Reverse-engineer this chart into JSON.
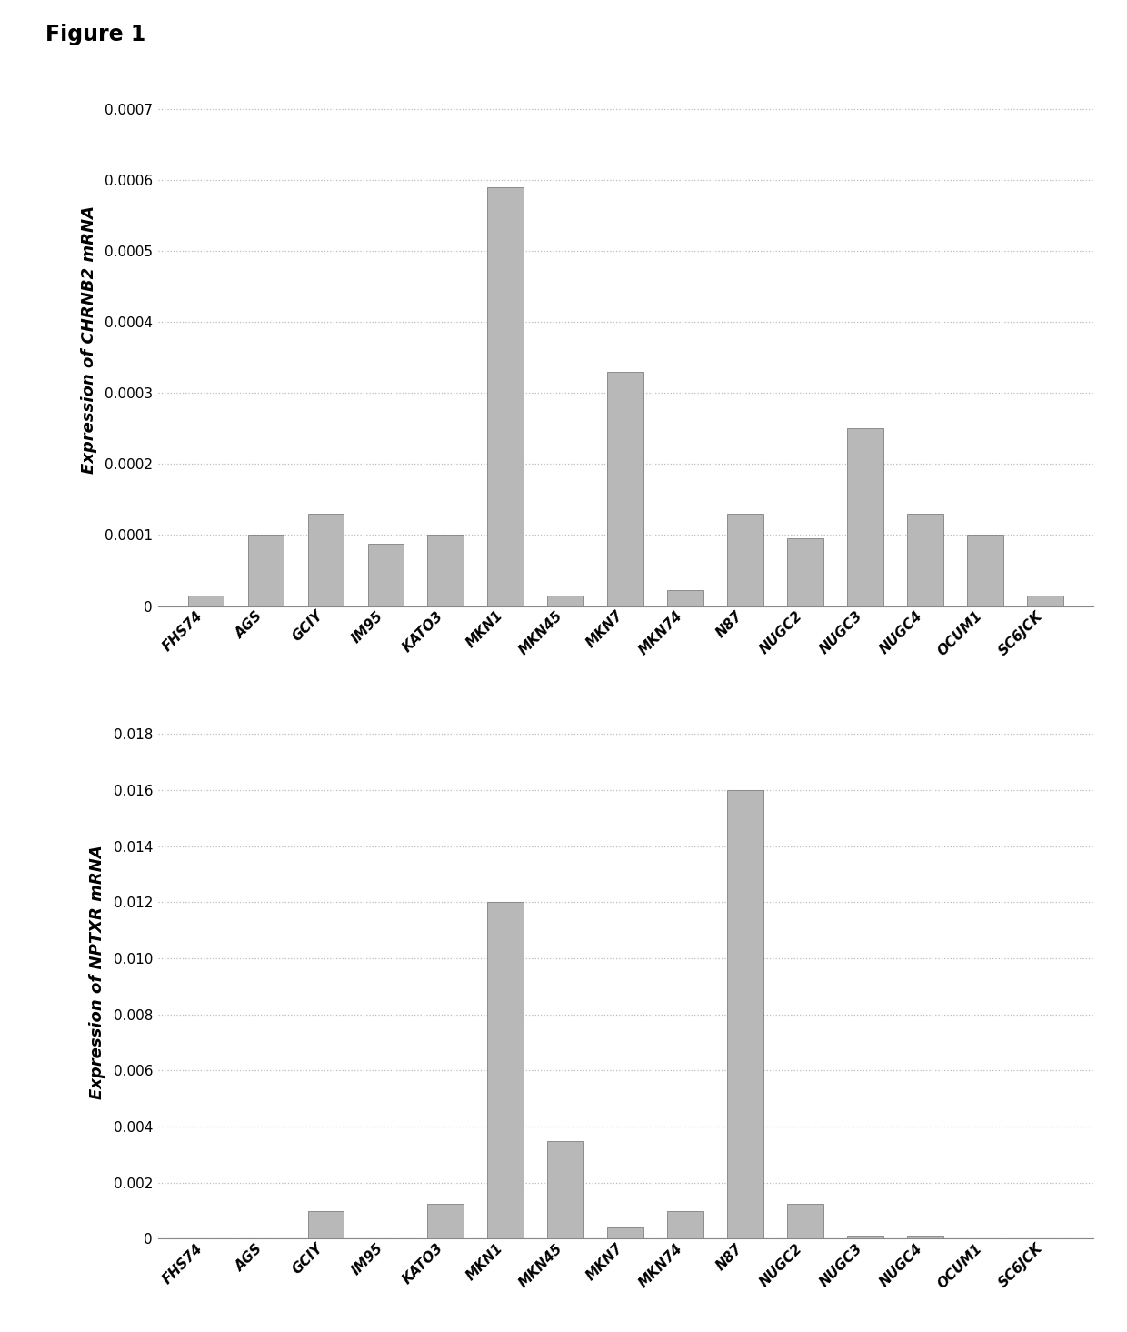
{
  "categories": [
    "FHS74",
    "AGS",
    "GCIY",
    "IM95",
    "KATO3",
    "MKN1",
    "MKN45",
    "MKN7",
    "MKN74",
    "N87",
    "NUGC2",
    "NUGC3",
    "NUGC4",
    "OCUM1",
    "SC6JCK"
  ],
  "chrnb2_values": [
    1.5e-05,
    0.0001,
    0.00013,
    8.8e-05,
    0.0001,
    0.00059,
    1.5e-05,
    0.00033,
    2.2e-05,
    0.00013,
    9.5e-05,
    0.00025,
    0.00013,
    0.0001,
    1.5e-05
  ],
  "nptxr_values": [
    0.0,
    0.0,
    0.001,
    0.0,
    0.00125,
    0.012,
    0.0035,
    0.0004,
    0.001,
    0.016,
    0.00125,
    0.0001,
    0.0001,
    0.0,
    0.0
  ],
  "chrnb2_gene": "CHRNB2",
  "nptxr_gene": "NPTXR",
  "chrnb2_yticks": [
    0,
    0.0001,
    0.0002,
    0.0003,
    0.0004,
    0.0005,
    0.0006,
    0.0007
  ],
  "nptxr_yticks": [
    0,
    0.002,
    0.004,
    0.006,
    0.008,
    0.01,
    0.012,
    0.014,
    0.016,
    0.018
  ],
  "chrnb2_ylim": [
    0,
    0.00075
  ],
  "nptxr_ylim": [
    0,
    0.019
  ],
  "bar_color": "#b8b8b8",
  "bar_edgecolor": "#808080",
  "figure_title": "Figure 1",
  "title_fontsize": 17,
  "label_fontsize": 13,
  "tick_fontsize": 11,
  "bar_width": 0.6,
  "grid_color": "#bbbbbb",
  "grid_linestyle": ":",
  "background_color": "#ffffff"
}
